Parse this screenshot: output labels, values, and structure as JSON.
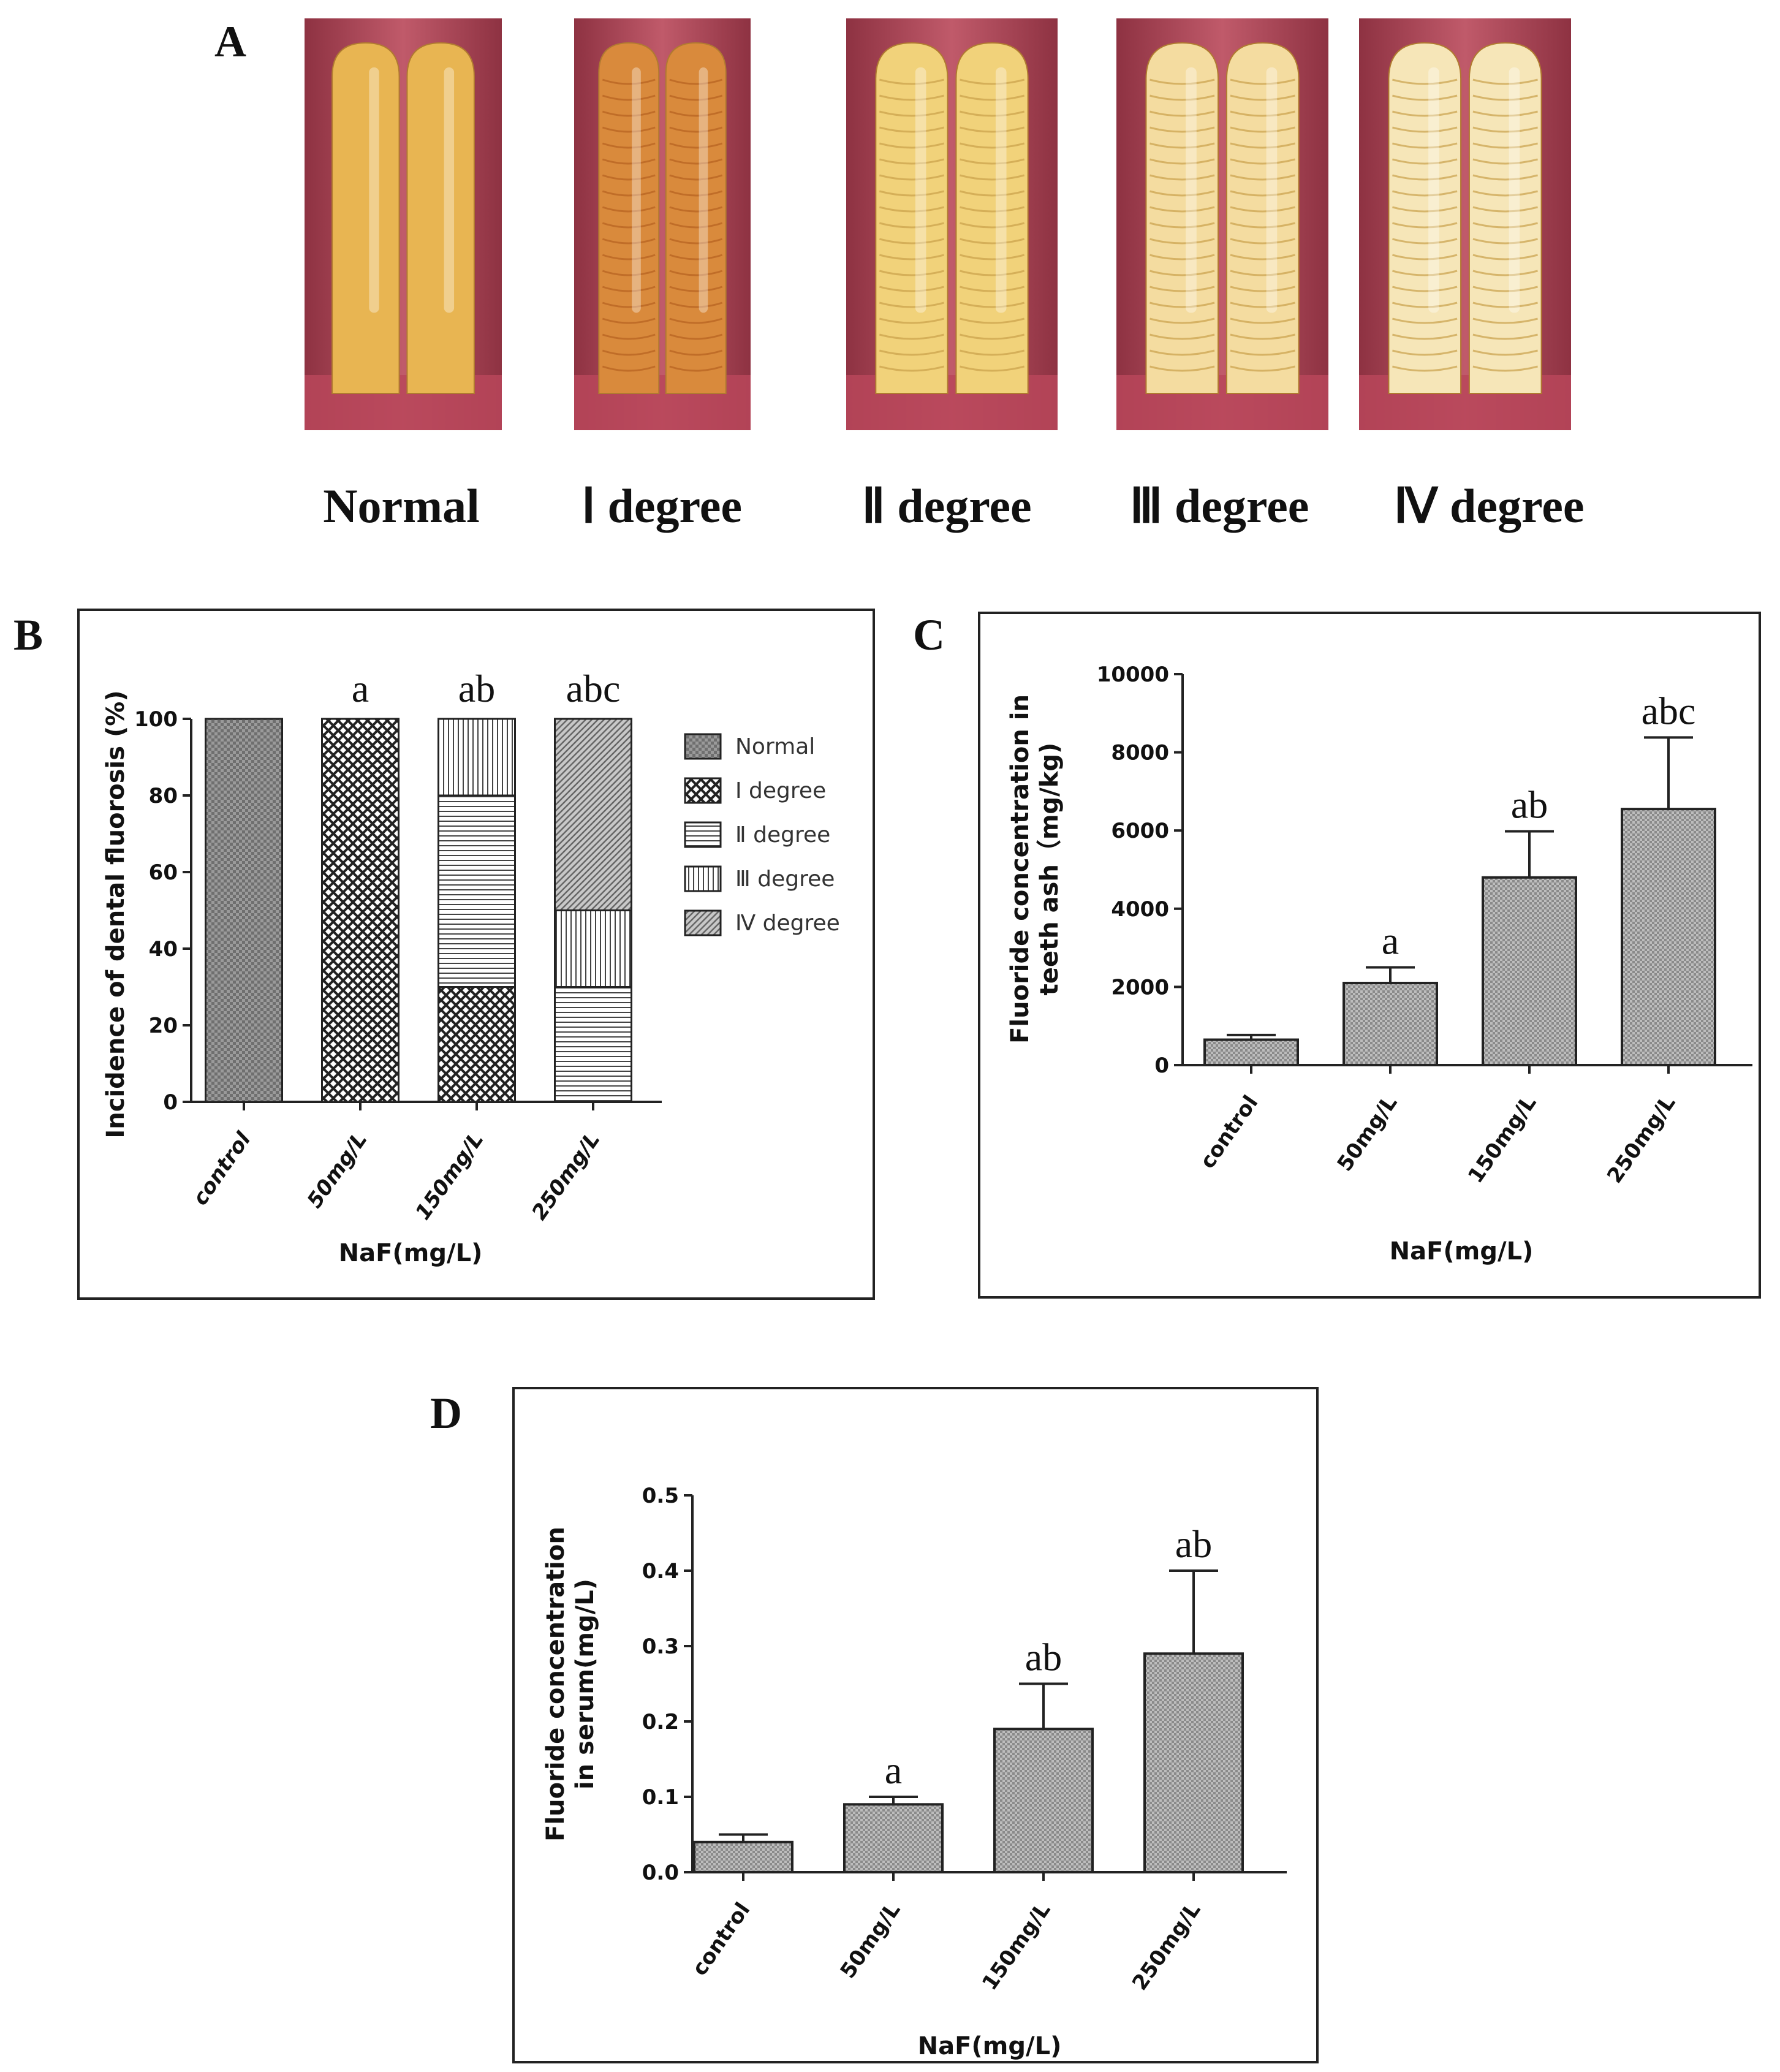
{
  "panel_a": {
    "letter": "A",
    "photo_labels": [
      "Normal",
      "Ⅰ degree",
      "Ⅱ degree",
      "Ⅲ degree",
      "Ⅳ degree"
    ],
    "colors": {
      "gum": "#b9475a",
      "gum_dark": "#7a2a3a",
      "tooth_normal": "#e8b552",
      "tooth_1": "#d98a3c",
      "tooth_2": "#f1d27a",
      "tooth_3": "#f4dca0",
      "tooth_4": "#f6e6b8"
    }
  },
  "chart_data": [
    {
      "panel": "B",
      "type": "bar",
      "stacked": true,
      "title": "",
      "xlabel": "NaF(mg/L)",
      "ylabel": "Incidence of dental fluorosis (%)",
      "categories": [
        "control",
        "50mg/L",
        "150mg/L",
        "250mg/L"
      ],
      "ylim": [
        0,
        100
      ],
      "yticks": [
        "0",
        "20",
        "40",
        "60",
        "80",
        "100"
      ],
      "series": [
        {
          "name": "Normal",
          "values": [
            100,
            0,
            0,
            0
          ]
        },
        {
          "name": "Ⅰ degree",
          "values": [
            0,
            100,
            30,
            0
          ]
        },
        {
          "name": "Ⅱ degree",
          "values": [
            0,
            0,
            50,
            30
          ]
        },
        {
          "name": "Ⅲ degree",
          "values": [
            0,
            0,
            20,
            20
          ]
        },
        {
          "name": "Ⅳ degree",
          "values": [
            0,
            0,
            0,
            50
          ]
        }
      ],
      "significance": [
        "",
        "a",
        "ab",
        "abc"
      ],
      "legend_position": "right"
    },
    {
      "panel": "C",
      "type": "bar",
      "title": "",
      "xlabel": "NaF(mg/L)",
      "ylabel_line1": "Fluoride concentration in",
      "ylabel_line2": "teeth ash（mg/kg)",
      "categories": [
        "control",
        "50mg/L",
        "150mg/L",
        "250mg/L"
      ],
      "values": [
        650,
        2100,
        4800,
        6550
      ],
      "errors": [
        120,
        400,
        1180,
        1830
      ],
      "ylim": [
        0,
        10000
      ],
      "yticks": [
        "0",
        "2000",
        "4000",
        "6000",
        "8000",
        "10000"
      ],
      "significance": [
        "",
        "a",
        "ab",
        "abc"
      ]
    },
    {
      "panel": "D",
      "type": "bar",
      "title": "",
      "xlabel": "NaF(mg/L)",
      "ylabel_line1": "Fluoride concentration",
      "ylabel_line2": "in serum(mg/L)",
      "categories": [
        "control",
        "50mg/L",
        "150mg/L",
        "250mg/L"
      ],
      "values": [
        0.04,
        0.09,
        0.19,
        0.29
      ],
      "errors": [
        0.01,
        0.01,
        0.06,
        0.11
      ],
      "ylim": [
        0,
        0.5
      ],
      "yticks": [
        "0.0",
        "0.1",
        "0.2",
        "0.3",
        "0.4",
        "0.5"
      ],
      "significance": [
        "",
        "a",
        "ab",
        "ab"
      ]
    }
  ]
}
